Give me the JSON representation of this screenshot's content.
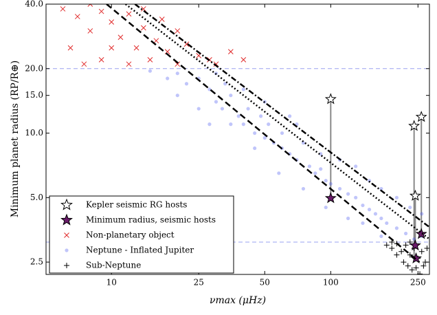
{
  "chart_data": {
    "type": "scatter",
    "xlabel": "νmax (μHz)",
    "ylabel": "Minimum planet radius (RP/R⊕)",
    "log_x": true,
    "log_y": true,
    "xlim": [
      5.03,
      282
    ],
    "ylim": [
      2.19,
      40
    ],
    "xticks": [
      10,
      25,
      50,
      100,
      250
    ],
    "yticks": [
      {
        "value": 2.5,
        "label": "2.5"
      },
      {
        "value": 5,
        "label": "5.0"
      },
      {
        "value": 10,
        "label": "10.0"
      },
      {
        "value": 15,
        "label": "15.0"
      },
      {
        "value": 20,
        "label": "20.0"
      },
      {
        "value": 40,
        "label": "40.0"
      }
    ],
    "hlines": [
      20,
      3.1
    ],
    "legend": "lower left",
    "series": [
      {
        "name": "Kepler seismic RG hosts",
        "marker": "star",
        "color": "#ffffff",
        "x": [
          100,
          243,
          240,
          259
        ],
        "values": [
          14.4,
          5.1,
          10.8,
          11.9
        ]
      },
      {
        "name": "Minimum radius, seismic hosts",
        "marker": "star",
        "color": "#6a1b6a",
        "connect_to_series": 0,
        "x": [
          100,
          243,
          245,
          259
        ],
        "values": [
          4.97,
          2.99,
          2.6,
          3.38
        ]
      },
      {
        "name": "Non-planetary object",
        "marker": "x",
        "color": "#e02a2a",
        "x": [
          6,
          7,
          8,
          9,
          10,
          11,
          12,
          13,
          14,
          15,
          16,
          18,
          20,
          22,
          25,
          28,
          30,
          35,
          40,
          6.5,
          7.5,
          9,
          12,
          14,
          17,
          20,
          8,
          10
        ],
        "values": [
          38,
          35,
          30,
          37,
          33,
          28,
          36,
          25,
          31,
          22,
          27,
          24,
          21,
          26,
          23,
          22,
          21,
          24,
          22,
          25,
          21,
          22,
          21,
          38,
          34,
          30,
          40,
          25
        ]
      },
      {
        "name": "Neptune - Inflated Jupiter",
        "marker": "o",
        "color": "#4a5af0",
        "x": [
          20,
          22,
          25,
          28,
          30,
          32,
          35,
          30,
          38,
          40,
          42,
          45,
          48,
          50,
          55,
          52,
          60,
          65,
          70,
          75,
          80,
          85,
          90,
          95,
          100,
          110,
          120,
          130,
          140,
          150,
          160,
          170,
          180,
          200,
          220,
          240,
          260,
          35,
          45,
          60,
          70,
          90,
          110,
          130,
          150,
          170,
          200,
          230,
          260,
          28,
          25,
          40,
          50,
          65,
          20,
          18,
          58,
          75,
          95,
          120,
          140,
          170,
          15,
          33
        ],
        "values": [
          19,
          17,
          18,
          16,
          14,
          13,
          15,
          19,
          12,
          11,
          13,
          10,
          12,
          9.5,
          9,
          11,
          8.5,
          8,
          7.5,
          9,
          7,
          6.5,
          6.8,
          6,
          5.8,
          5.5,
          5.2,
          5,
          4.6,
          4.4,
          4.2,
          4,
          3.8,
          3.6,
          3.4,
          3.2,
          3.3,
          11,
          8.5,
          10,
          11,
          8,
          7.5,
          7,
          6,
          5.5,
          5,
          4.5,
          4.2,
          11,
          13,
          16,
          14,
          12,
          15,
          18,
          6.5,
          5.5,
          4.5,
          4,
          3.8,
          3.3,
          19.5,
          17
        ]
      },
      {
        "name": "Sub-Neptune",
        "marker": "+",
        "color": "#000000",
        "x": [
          180,
          190,
          200,
          210,
          220,
          230,
          240,
          250,
          260,
          270,
          215,
          225,
          235,
          245,
          255,
          265,
          275,
          200,
          190,
          230
        ],
        "values": [
          3,
          2.9,
          3.05,
          2.8,
          3,
          2.7,
          2.9,
          2.6,
          2.8,
          2.5,
          2.5,
          2.4,
          2.3,
          2.35,
          2.2,
          2.4,
          2.9,
          2.7,
          3.1,
          3.1
        ]
      }
    ],
    "lines": [
      {
        "style": "dashed",
        "x": [
          9.5,
          254
        ],
        "values": [
          40,
          2.5
        ]
      },
      {
        "style": "dotted",
        "x": [
          11.6,
          282
        ],
        "values": [
          40,
          3.2
        ]
      },
      {
        "style": "dashdot",
        "x": [
          12.8,
          282
        ],
        "values": [
          40,
          3.64
        ]
      }
    ]
  }
}
